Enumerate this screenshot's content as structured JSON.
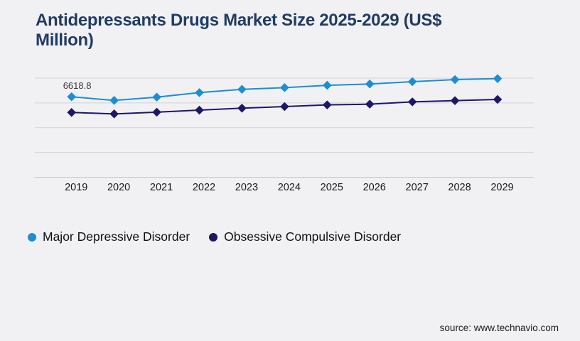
{
  "page": {
    "background_color": "#f1f1f3"
  },
  "chart_data": {
    "type": "line",
    "title": "Antidepressants Drugs Market Size 2025-2029 (US$ Million)",
    "title_color": "#1f3b66",
    "xlabel": "",
    "ylabel": "",
    "categories": [
      "2019",
      "2020",
      "2021",
      "2022",
      "2023",
      "2024",
      "2025",
      "2026",
      "2027",
      "2028",
      "2029"
    ],
    "series": [
      {
        "name": "Major Depressive Disorder",
        "color": "#1b8ed6",
        "marker": "diamond",
        "values": [
          6618.8,
          6320,
          6590,
          6960,
          7230,
          7370,
          7560,
          7670,
          7860,
          8030,
          8110
        ]
      },
      {
        "name": "Obsessive Compulsive Disorder",
        "color": "#1d1768",
        "marker": "diamond",
        "values": [
          5330,
          5210,
          5350,
          5520,
          5680,
          5810,
          5950,
          6010,
          6200,
          6300,
          6400
        ]
      }
    ],
    "data_label": {
      "series_index": 0,
      "point_index": 0,
      "text": "6618.8"
    },
    "ylim": [
      0,
      8150
    ],
    "gridline_count": 5,
    "grid_color": "#d4d4d8",
    "axis_color": "#c7c7cb",
    "grid_on": true,
    "legend_position": "bottom",
    "legend_marker": "circle",
    "tick_color": "#1a1a1a"
  },
  "footer": {
    "source_label": "source: www.technavio.com"
  }
}
